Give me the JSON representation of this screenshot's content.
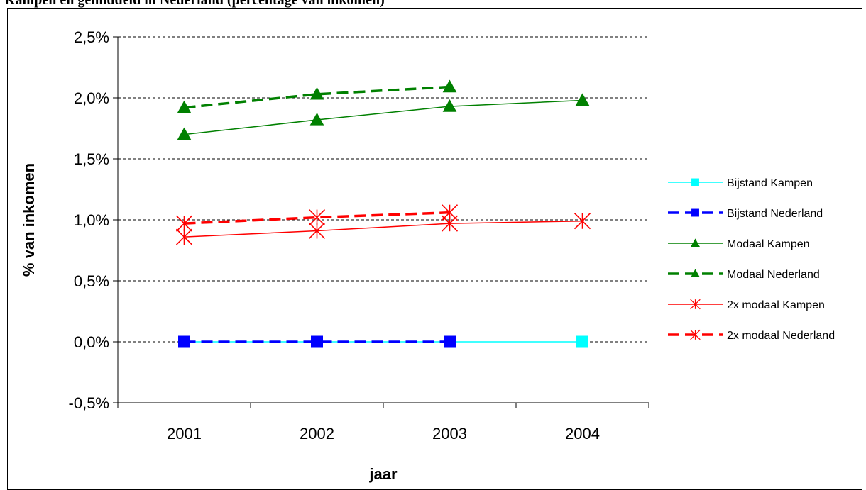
{
  "header": {
    "title": "Kampen en gemiddeld in Nederland (percentage van inkomen)"
  },
  "chart_data": {
    "type": "line",
    "categories": [
      "2001",
      "2002",
      "2003",
      "2004"
    ],
    "xlabel": "jaar",
    "ylabel": "% van inkomen",
    "ylim": [
      -0.5,
      2.5
    ],
    "yticks": [
      -0.5,
      0.0,
      0.5,
      1.0,
      1.5,
      2.0,
      2.5
    ],
    "ytick_labels": [
      "-0,5%",
      "0,0%",
      "0,5%",
      "1,0%",
      "1,5%",
      "2,0%",
      "2,5%"
    ],
    "grid": "horizontal dashed",
    "legend_position": "right",
    "series": [
      {
        "name": "Bijstand Kampen",
        "values": [
          0.0,
          0.0,
          0.0,
          0.0
        ],
        "color": "#00FFFF",
        "dash": false,
        "marker": "square"
      },
      {
        "name": "Bijstand Nederland",
        "values": [
          0.0,
          0.0,
          0.0,
          null
        ],
        "color": "#0000FF",
        "dash": true,
        "marker": "square"
      },
      {
        "name": "Modaal Kampen",
        "values": [
          1.7,
          1.82,
          1.93,
          1.98
        ],
        "color": "#008000",
        "dash": false,
        "marker": "triangle"
      },
      {
        "name": "Modaal Nederland",
        "values": [
          1.92,
          2.03,
          2.09,
          null
        ],
        "color": "#008000",
        "dash": true,
        "marker": "triangle"
      },
      {
        "name": "2x modaal Kampen",
        "values": [
          0.86,
          0.91,
          0.97,
          0.99
        ],
        "color": "#FF0000",
        "dash": false,
        "marker": "asterisk"
      },
      {
        "name": "2x modaal Nederland",
        "values": [
          0.97,
          1.02,
          1.06,
          null
        ],
        "color": "#FF0000",
        "dash": true,
        "marker": "asterisk"
      }
    ]
  }
}
